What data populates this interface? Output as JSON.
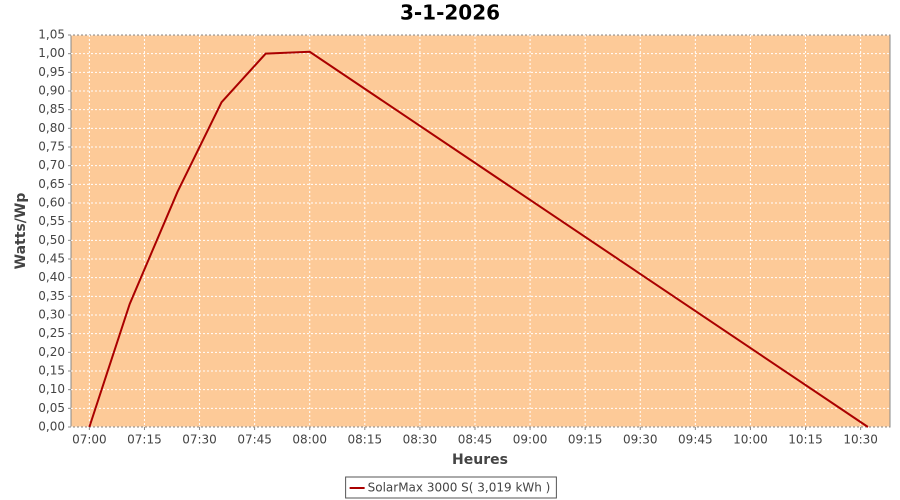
{
  "chart_data": {
    "type": "line",
    "title": "3-1-2026",
    "x_label": "Heures",
    "y_label": "Watts/Wp",
    "x": [
      "07:00",
      "07:11",
      "07:24",
      "07:36",
      "07:48",
      "08:00",
      "10:32"
    ],
    "series": [
      {
        "name": "SolarMax 3000 S( 3,019 kWh )",
        "color": "#aa0000",
        "values": [
          0,
          0.33,
          0.63,
          0.87,
          1.0,
          1.005,
          0
        ]
      }
    ],
    "xlim": [
      "06:55",
      "10:38"
    ],
    "xticks": [
      "07:00",
      "07:15",
      "07:30",
      "07:45",
      "08:00",
      "08:15",
      "08:30",
      "08:45",
      "09:00",
      "09:15",
      "09:30",
      "09:45",
      "10:00",
      "10:15",
      "10:30"
    ],
    "ylim": [
      0,
      1.05
    ],
    "yticks": [
      {
        "value": 0,
        "label": "0,00"
      },
      {
        "value": 0.05,
        "label": "0,05"
      },
      {
        "value": 0.1,
        "label": "0,10"
      },
      {
        "value": 0.15,
        "label": "0,15"
      },
      {
        "value": 0.2,
        "label": "0,20"
      },
      {
        "value": 0.25,
        "label": "0,25"
      },
      {
        "value": 0.3,
        "label": "0,30"
      },
      {
        "value": 0.35,
        "label": "0,35"
      },
      {
        "value": 0.4,
        "label": "0,40"
      },
      {
        "value": 0.45,
        "label": "0,45"
      },
      {
        "value": 0.5,
        "label": "0,50"
      },
      {
        "value": 0.55,
        "label": "0,55"
      },
      {
        "value": 0.6,
        "label": "0,60"
      },
      {
        "value": 0.65,
        "label": "0,65"
      },
      {
        "value": 0.7,
        "label": "0,70"
      },
      {
        "value": 0.75,
        "label": "0,75"
      },
      {
        "value": 0.8,
        "label": "0,80"
      },
      {
        "value": 0.85,
        "label": "0,85"
      },
      {
        "value": 0.9,
        "label": "0,90"
      },
      {
        "value": 0.95,
        "label": "0,95"
      },
      {
        "value": 1.0,
        "label": "1,00"
      },
      {
        "value": 1.05,
        "label": "1,05"
      }
    ],
    "grid": true,
    "plot_background": "#fdca98",
    "legend": "bottom"
  }
}
